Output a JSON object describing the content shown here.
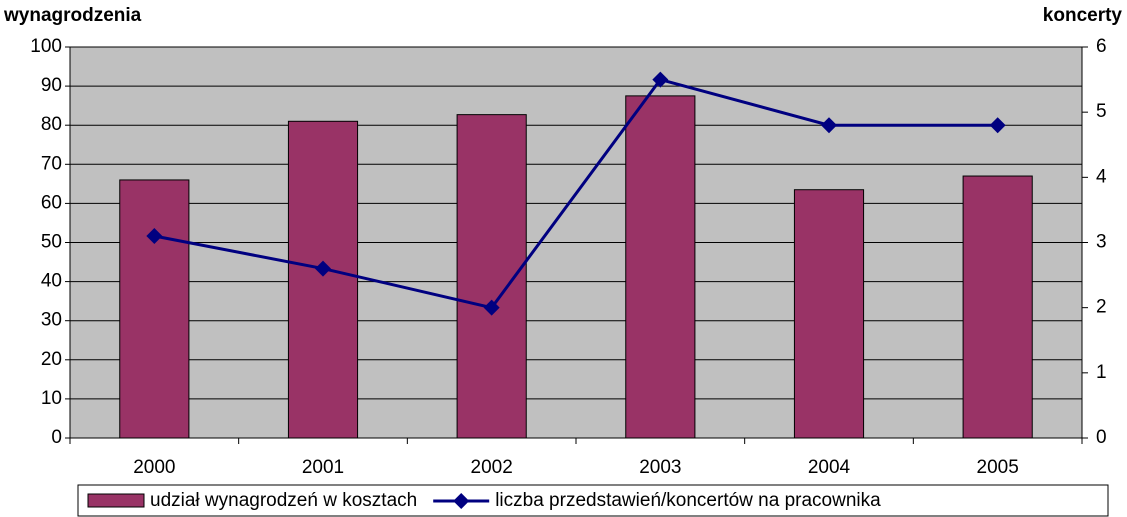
{
  "chart_data": {
    "type": "bar",
    "ylabel": "wynagrodzenia",
    "y2label": "koncerty",
    "categories": [
      "2000",
      "2001",
      "2002",
      "2003",
      "2004",
      "2005"
    ],
    "series": [
      {
        "name": "udział wynagrodzeń w kosztach",
        "type": "bar",
        "color": "#993366",
        "values": [
          66,
          81,
          82.7,
          87.5,
          63.5,
          67
        ]
      },
      {
        "name": "liczba przedstawień/koncertów na pracownika",
        "type": "line",
        "axis": "y2",
        "color": "#000080",
        "values": [
          3.1,
          2.6,
          2.0,
          5.5,
          4.8,
          4.8
        ]
      }
    ],
    "ylim": [
      0,
      100
    ],
    "yticks": [
      0,
      10,
      20,
      30,
      40,
      50,
      60,
      70,
      80,
      90,
      100
    ],
    "y2lim": [
      0,
      6
    ],
    "y2ticks": [
      0,
      1,
      2,
      3,
      4,
      5,
      6
    ],
    "grid": true,
    "plot_background": "#c0c0c0",
    "legend": "bottom"
  }
}
